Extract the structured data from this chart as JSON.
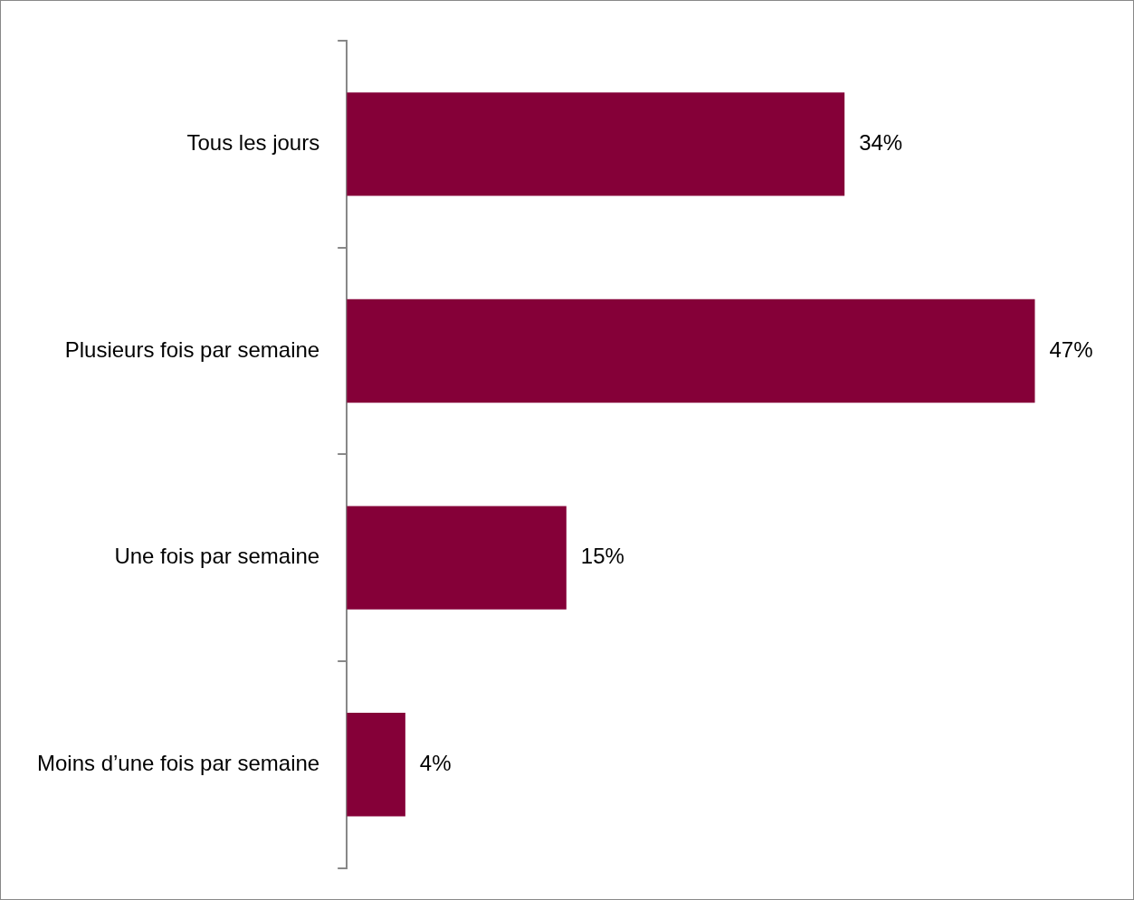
{
  "chart_data": {
    "type": "bar",
    "orientation": "horizontal",
    "categories": [
      "Tous les jours",
      "Plusieurs fois par semaine",
      "Une fois par semaine",
      "Moins d’une fois par semaine"
    ],
    "values": [
      34,
      47,
      15,
      4
    ],
    "color": "#850038",
    "value_labels": [
      "34%",
      "47%",
      "15%",
      "4%"
    ]
  }
}
